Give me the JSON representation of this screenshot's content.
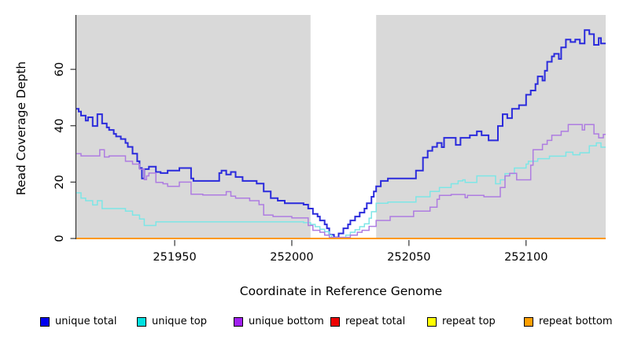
{
  "figure": {
    "background": "#ffffff",
    "panel_background": "#d9d9d9",
    "axis_color": "#333333",
    "text_color": "#000000"
  },
  "chart_data": {
    "type": "line",
    "step": true,
    "title": "",
    "xlabel": "Coordinate in Reference Genome",
    "ylabel": "Read Coverage Depth",
    "xlim": [
      251908,
      252134
    ],
    "ylim": [
      0,
      79.3
    ],
    "x_ticks": [
      251950,
      252000,
      252050,
      252100
    ],
    "y_ticks": [
      0,
      20,
      40,
      60
    ],
    "grid": false,
    "legend_position": "bottom",
    "highlight_region": {
      "x_start": 252008,
      "x_end": 252036,
      "color": "#ffffff"
    },
    "series": [
      {
        "name": "unique total",
        "line_color": "#2b2bdc",
        "legend_color": "#0000ee",
        "line_width": 2,
        "values": [
          [
            251908,
            46
          ],
          [
            251909,
            45
          ],
          [
            251910,
            43.6
          ],
          [
            251912,
            41.8
          ],
          [
            251913,
            43
          ],
          [
            251915,
            39.9
          ],
          [
            251917,
            44.1
          ],
          [
            251919,
            40.8
          ],
          [
            251921,
            39.4
          ],
          [
            251922,
            38.5
          ],
          [
            251924,
            37.1
          ],
          [
            251925,
            36.2
          ],
          [
            251927,
            35.3
          ],
          [
            251929,
            33.9
          ],
          [
            251930,
            32.5
          ],
          [
            251932,
            30.1
          ],
          [
            251934,
            27.4
          ],
          [
            251935,
            25
          ],
          [
            251936,
            21.3
          ],
          [
            251937,
            24.6
          ],
          [
            251939,
            25.5
          ],
          [
            251942,
            23.6
          ],
          [
            251944,
            23.2
          ],
          [
            251947,
            24.1
          ],
          [
            251952,
            25
          ],
          [
            251957,
            21.3
          ],
          [
            251958,
            20.4
          ],
          [
            251969,
            23.2
          ],
          [
            251970,
            24.1
          ],
          [
            251972,
            22.7
          ],
          [
            251974,
            23.6
          ],
          [
            251976,
            21.8
          ],
          [
            251979,
            20.4
          ],
          [
            251985,
            19.5
          ],
          [
            251988,
            16.7
          ],
          [
            251991,
            14.3
          ],
          [
            251994,
            13.4
          ],
          [
            251997,
            12.5
          ],
          [
            252005,
            12
          ],
          [
            252007,
            10.6
          ],
          [
            252009,
            8.7
          ],
          [
            252011,
            7.8
          ],
          [
            252012,
            6.4
          ],
          [
            252014,
            5
          ],
          [
            252015,
            3.6
          ],
          [
            252016,
            1.3
          ],
          [
            252018,
            0.4
          ],
          [
            252020,
            1.8
          ],
          [
            252022,
            3.6
          ],
          [
            252024,
            5
          ],
          [
            252025,
            6.4
          ],
          [
            252027,
            7.8
          ],
          [
            252029,
            9.2
          ],
          [
            252031,
            10.6
          ],
          [
            252032,
            12.5
          ],
          [
            252034,
            14.8
          ],
          [
            252035,
            16.7
          ],
          [
            252036,
            18.5
          ],
          [
            252038,
            20.4
          ],
          [
            252041,
            21.3
          ],
          [
            252053,
            24.1
          ],
          [
            252056,
            28.7
          ],
          [
            252058,
            31.1
          ],
          [
            252060,
            32.5
          ],
          [
            252062,
            33.9
          ],
          [
            252064,
            32.4
          ],
          [
            252065,
            35.7
          ],
          [
            252070,
            33.2
          ],
          [
            252072,
            35.7
          ],
          [
            252076,
            36.6
          ],
          [
            252079,
            38
          ],
          [
            252081,
            36.6
          ],
          [
            252084,
            34.8
          ],
          [
            252088,
            39.9
          ],
          [
            252090,
            44.1
          ],
          [
            252092,
            42.7
          ],
          [
            252094,
            46
          ],
          [
            252097,
            47.3
          ],
          [
            252100,
            51
          ],
          [
            252102,
            52.5
          ],
          [
            252104,
            54.8
          ],
          [
            252105,
            57.5
          ],
          [
            252107,
            56
          ],
          [
            252108,
            59.5
          ],
          [
            252109,
            62.7
          ],
          [
            252111,
            64.6
          ],
          [
            252112,
            65.5
          ],
          [
            252114,
            63.7
          ],
          [
            252115,
            67.8
          ],
          [
            252117,
            70.6
          ],
          [
            252119,
            69.7
          ],
          [
            252121,
            70.6
          ],
          [
            252123,
            69.2
          ],
          [
            252125,
            73.9
          ],
          [
            252127,
            72.5
          ],
          [
            252129,
            68.7
          ],
          [
            252131,
            71.1
          ],
          [
            252132,
            69.2
          ],
          [
            252134,
            69.2
          ]
        ]
      },
      {
        "name": "unique top",
        "line_color": "#7de6e6",
        "legend_color": "#00e1e1",
        "line_width": 1.5,
        "values": [
          [
            251908,
            16.2
          ],
          [
            251910,
            14.3
          ],
          [
            251912,
            13.4
          ],
          [
            251915,
            11.9
          ],
          [
            251917,
            13.4
          ],
          [
            251919,
            10.6
          ],
          [
            251929,
            9.7
          ],
          [
            251932,
            8.3
          ],
          [
            251935,
            6.9
          ],
          [
            251937,
            4.6
          ],
          [
            251942,
            5.9
          ],
          [
            252005,
            5.6
          ],
          [
            252008,
            5
          ],
          [
            252010,
            4.2
          ],
          [
            252012,
            3.3
          ],
          [
            252014,
            2.4
          ],
          [
            252016,
            1.2
          ],
          [
            252017,
            0.3
          ],
          [
            252021,
            0.3
          ],
          [
            252023,
            1.2
          ],
          [
            252025,
            2.2
          ],
          [
            252027,
            3.1
          ],
          [
            252029,
            4.2
          ],
          [
            252031,
            5.2
          ],
          [
            252033,
            7.2
          ],
          [
            252034,
            9.5
          ],
          [
            252036,
            12.5
          ],
          [
            252041,
            12.9
          ],
          [
            252053,
            14.8
          ],
          [
            252059,
            16.7
          ],
          [
            252063,
            18.1
          ],
          [
            252068,
            19.4
          ],
          [
            252071,
            20.4
          ],
          [
            252073,
            20.8
          ],
          [
            252074,
            19.9
          ],
          [
            252079,
            22.2
          ],
          [
            252087,
            19.4
          ],
          [
            252089,
            20.8
          ],
          [
            252091,
            23
          ],
          [
            252095,
            25
          ],
          [
            252100,
            26.4
          ],
          [
            252101,
            27.4
          ],
          [
            252105,
            28.3
          ],
          [
            252110,
            29.2
          ],
          [
            252117,
            30.6
          ],
          [
            252120,
            29.7
          ],
          [
            252123,
            30.4
          ],
          [
            252127,
            32.9
          ],
          [
            252130,
            33.9
          ],
          [
            252132,
            32.4
          ],
          [
            252134,
            32.4
          ]
        ]
      },
      {
        "name": "unique bottom",
        "line_color": "#ae7ce1",
        "legend_color": "#a020f0",
        "line_width": 1.5,
        "values": [
          [
            251908,
            30.1
          ],
          [
            251910,
            29.3
          ],
          [
            251918,
            31.5
          ],
          [
            251920,
            28.9
          ],
          [
            251922,
            29.3
          ],
          [
            251929,
            27.4
          ],
          [
            251932,
            26.4
          ],
          [
            251935,
            24.6
          ],
          [
            251937,
            20.9
          ],
          [
            251938,
            22.2
          ],
          [
            251939,
            23.2
          ],
          [
            251942,
            19.9
          ],
          [
            251945,
            19.4
          ],
          [
            251947,
            18.5
          ],
          [
            251952,
            20
          ],
          [
            251957,
            15.7
          ],
          [
            251962,
            15.4
          ],
          [
            251972,
            16.6
          ],
          [
            251974,
            15
          ],
          [
            251976,
            14.3
          ],
          [
            251982,
            13.4
          ],
          [
            251986,
            12
          ],
          [
            251988,
            8.3
          ],
          [
            251992,
            7.8
          ],
          [
            252000,
            7.3
          ],
          [
            252007,
            4.6
          ],
          [
            252009,
            2.9
          ],
          [
            252012,
            2.2
          ],
          [
            252014,
            1.2
          ],
          [
            252016,
            0.4
          ],
          [
            252022,
            0.4
          ],
          [
            252025,
            1.2
          ],
          [
            252028,
            2.2
          ],
          [
            252030,
            2.9
          ],
          [
            252033,
            4.3
          ],
          [
            252036,
            6.4
          ],
          [
            252042,
            7.8
          ],
          [
            252052,
            9.7
          ],
          [
            252059,
            11.1
          ],
          [
            252062,
            13.9
          ],
          [
            252063,
            15.3
          ],
          [
            252068,
            15.6
          ],
          [
            252074,
            14.5
          ],
          [
            252075,
            15.3
          ],
          [
            252082,
            14.8
          ],
          [
            252089,
            18.1
          ],
          [
            252091,
            22.2
          ],
          [
            252093,
            23.1
          ],
          [
            252096,
            20.8
          ],
          [
            252102,
            26
          ],
          [
            252103,
            31.5
          ],
          [
            252107,
            33.4
          ],
          [
            252109,
            34.8
          ],
          [
            252111,
            36.6
          ],
          [
            252115,
            38
          ],
          [
            252118,
            40.4
          ],
          [
            252124,
            38.5
          ],
          [
            252125,
            40.4
          ],
          [
            252129,
            37.1
          ],
          [
            252131,
            35.7
          ],
          [
            252133,
            36.9
          ],
          [
            252134,
            36.9
          ]
        ]
      },
      {
        "name": "repeat total",
        "line_color": "#de0000",
        "legend_color": "#ee0000",
        "line_width": 1.5,
        "values": [
          [
            251908,
            0
          ],
          [
            252134,
            0
          ]
        ]
      },
      {
        "name": "repeat top",
        "line_color": "#ffff00",
        "legend_color": "#ffff00",
        "line_width": 1.5,
        "values": [
          [
            251908,
            0
          ],
          [
            252134,
            0
          ]
        ]
      },
      {
        "name": "repeat bottom",
        "line_color": "#ff9400",
        "legend_color": "#ff9f00",
        "line_width": 1.8,
        "values": [
          [
            251908,
            0
          ],
          [
            252134,
            0
          ]
        ]
      }
    ]
  }
}
